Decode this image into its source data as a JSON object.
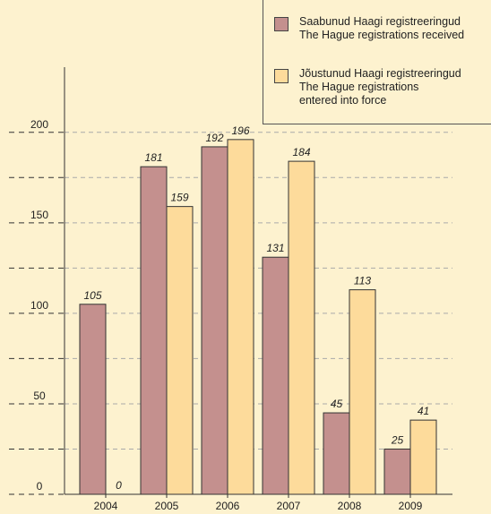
{
  "chart_data": {
    "type": "bar",
    "categories": [
      "2004",
      "2005",
      "2006",
      "2007",
      "2008",
      "2009"
    ],
    "series": [
      {
        "name": "Saabunud Haagi registreeringud\nThe Hague registrations received",
        "color": "#c4908e",
        "values": [
          105,
          181,
          192,
          131,
          45,
          25
        ]
      },
      {
        "name": "Jõustunud Haagi registreeringud\nThe Hague registrations\nentered into force",
        "color": "#fddb9b",
        "values": [
          0,
          159,
          196,
          184,
          113,
          41
        ]
      }
    ],
    "ylim": [
      0,
      236
    ],
    "yticks": [
      0,
      50,
      100,
      150,
      200
    ],
    "minor_yticks": [
      25,
      75,
      125,
      175
    ],
    "grid": true,
    "legend": "top-right"
  }
}
